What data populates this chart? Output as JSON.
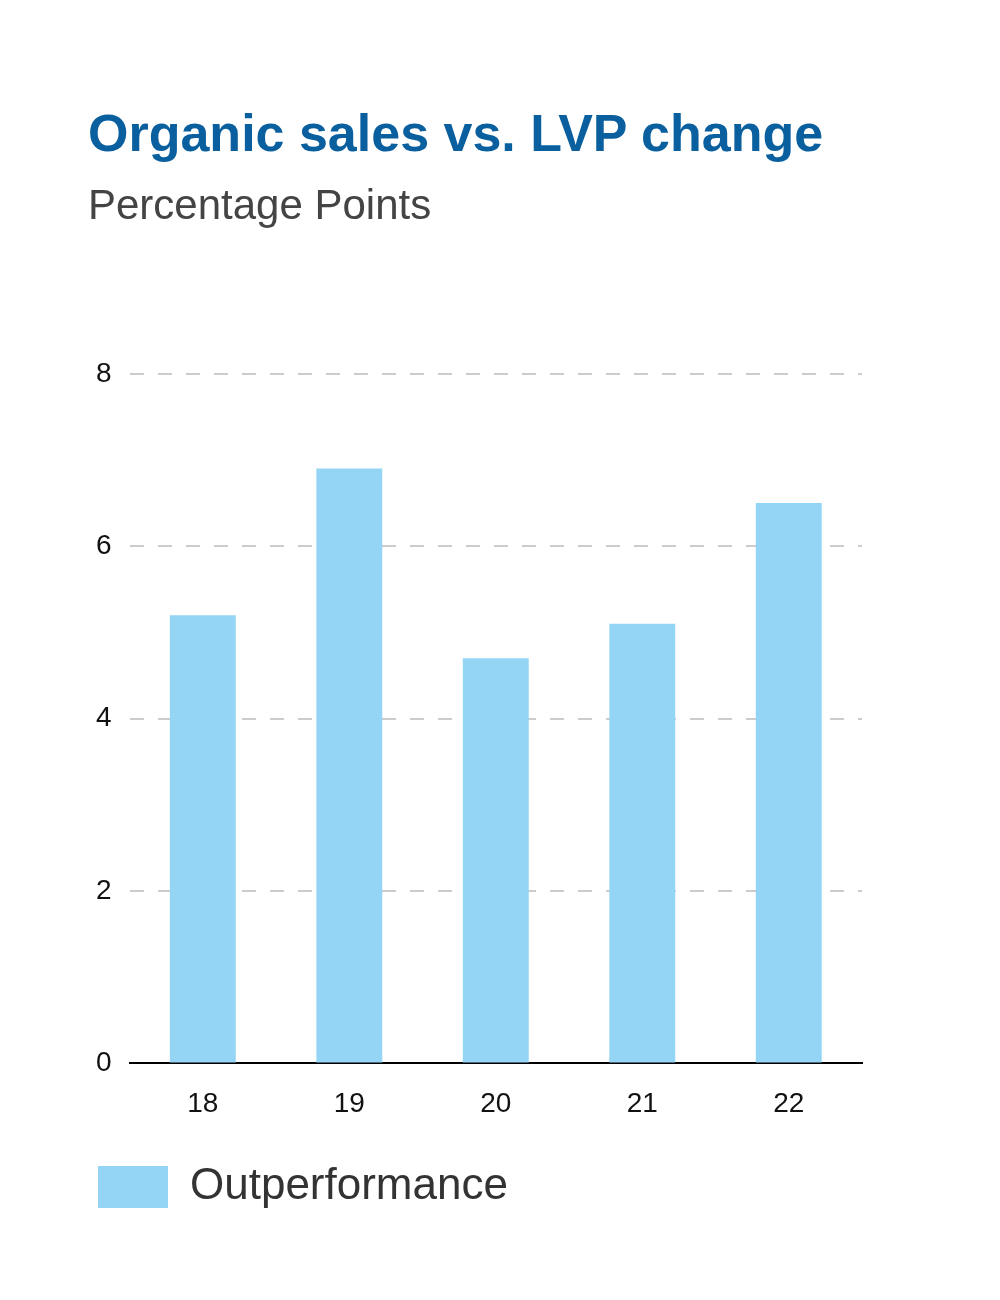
{
  "chart_data": {
    "type": "bar",
    "title": "Organic sales vs. LVP change",
    "subtitle": "Percentage Points",
    "categories": [
      "18",
      "19",
      "20",
      "21",
      "22"
    ],
    "series": [
      {
        "name": "Outperformance",
        "color": "#94d5f5",
        "values": [
          5.2,
          6.9,
          4.7,
          5.1,
          6.5
        ]
      }
    ],
    "ylim": [
      0,
      8
    ],
    "yticks": [
      0,
      2,
      4,
      6,
      8
    ],
    "grid": "y",
    "legend": "bottom left"
  }
}
